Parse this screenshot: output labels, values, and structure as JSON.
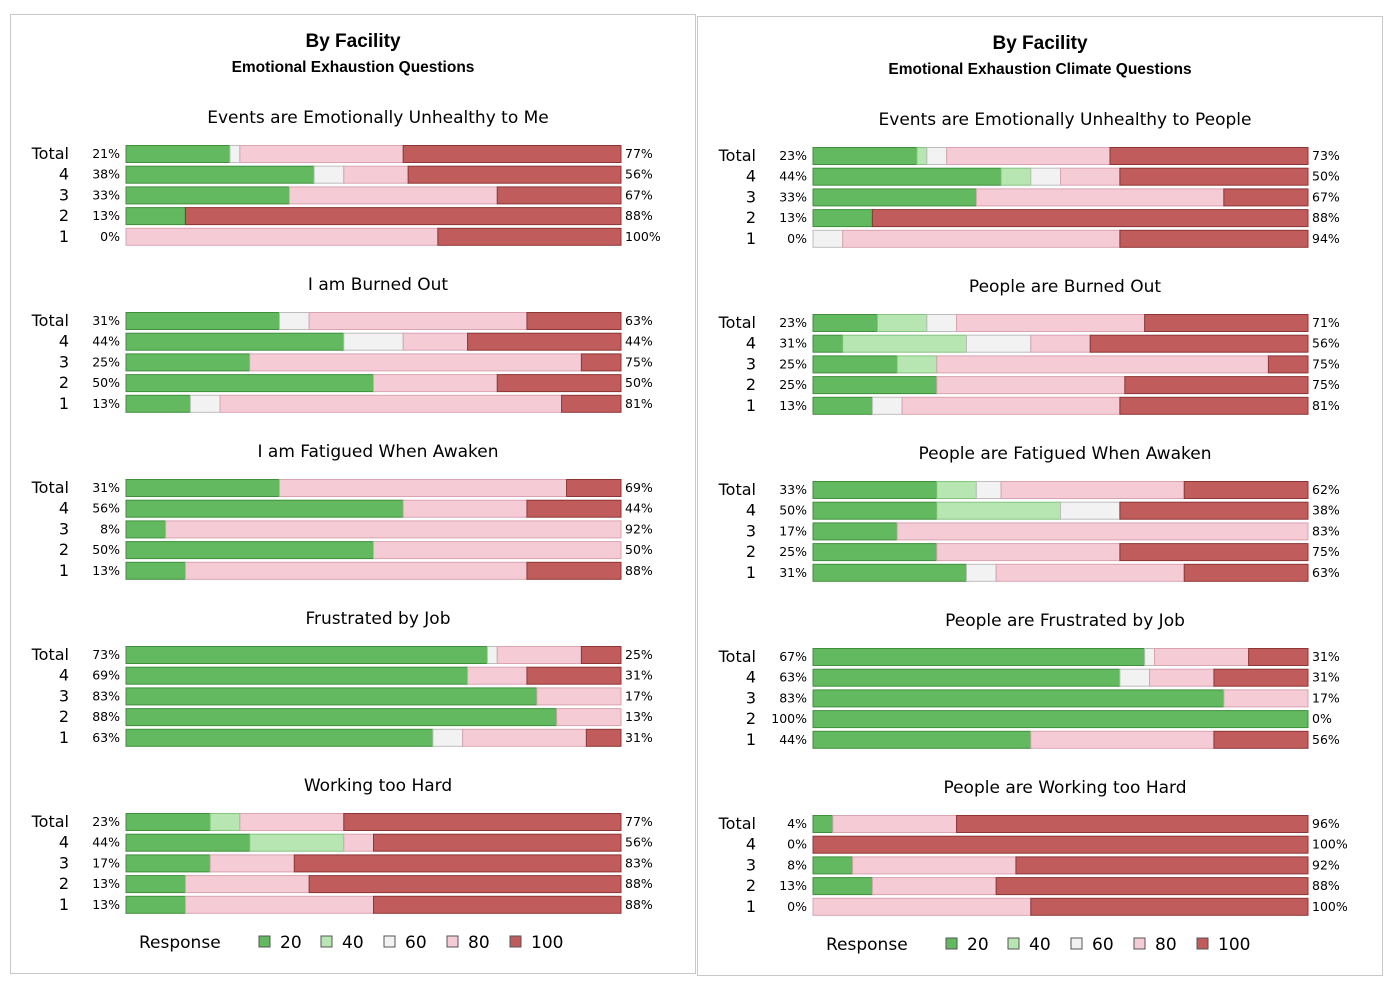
{
  "response_label": "Response",
  "legend_items": [
    "20",
    "40",
    "60",
    "80",
    "100"
  ],
  "colors": {
    "20": "#63b95f",
    "40": "#b8e6b3",
    "60": "#f2f2f2",
    "80": "#f5cbd6",
    "100": "#c15c5c"
  },
  "row_labels": [
    "Total",
    "4",
    "3",
    "2",
    "1"
  ],
  "chart_data": [
    {
      "type": "bar",
      "title": "By Facility",
      "subtitle": "Emotional Exhaustion Questions",
      "legend_title": "Response",
      "legend": [
        "20",
        "40",
        "60",
        "80",
        "100"
      ],
      "legend_placement": "bottom",
      "groups": [
        {
          "question": "Events are Emotionally Unhealthy to Me",
          "rows": [
            {
              "label": "Total",
              "left": "21%",
              "right": "77%",
              "segments": [
                21,
                0,
                2,
                33,
                44
              ]
            },
            {
              "label": "4",
              "left": "38%",
              "right": "56%",
              "segments": [
                38,
                0,
                6,
                13,
                43
              ]
            },
            {
              "label": "3",
              "left": "33%",
              "right": "67%",
              "segments": [
                33,
                0,
                0,
                42,
                25
              ]
            },
            {
              "label": "2",
              "left": "13%",
              "right": "88%",
              "segments": [
                12,
                0,
                0,
                0,
                88
              ]
            },
            {
              "label": "1",
              "left": "0%",
              "right": "100%",
              "segments": [
                0,
                0,
                0,
                63,
                37
              ]
            }
          ]
        },
        {
          "question": "I am Burned Out",
          "rows": [
            {
              "label": "Total",
              "left": "31%",
              "right": "63%",
              "segments": [
                31,
                0,
                6,
                44,
                19
              ]
            },
            {
              "label": "4",
              "left": "44%",
              "right": "44%",
              "segments": [
                44,
                0,
                12,
                13,
                31
              ]
            },
            {
              "label": "3",
              "left": "25%",
              "right": "75%",
              "segments": [
                25,
                0,
                0,
                67,
                8
              ]
            },
            {
              "label": "2",
              "left": "50%",
              "right": "50%",
              "segments": [
                50,
                0,
                0,
                25,
                25
              ]
            },
            {
              "label": "1",
              "left": "13%",
              "right": "81%",
              "segments": [
                13,
                0,
                6,
                69,
                12
              ]
            }
          ]
        },
        {
          "question": "I am Fatigued When Awaken",
          "rows": [
            {
              "label": "Total",
              "left": "31%",
              "right": "69%",
              "segments": [
                31,
                0,
                0,
                58,
                11
              ]
            },
            {
              "label": "4",
              "left": "56%",
              "right": "44%",
              "segments": [
                56,
                0,
                0,
                25,
                19
              ]
            },
            {
              "label": "3",
              "left": "8%",
              "right": "92%",
              "segments": [
                8,
                0,
                0,
                92,
                0
              ]
            },
            {
              "label": "2",
              "left": "50%",
              "right": "50%",
              "segments": [
                50,
                0,
                0,
                50,
                0
              ]
            },
            {
              "label": "1",
              "left": "13%",
              "right": "88%",
              "segments": [
                12,
                0,
                0,
                69,
                19
              ]
            }
          ]
        },
        {
          "question": "Frustrated by Job",
          "rows": [
            {
              "label": "Total",
              "left": "73%",
              "right": "25%",
              "segments": [
                73,
                0,
                2,
                17,
                8
              ]
            },
            {
              "label": "4",
              "left": "69%",
              "right": "31%",
              "segments": [
                69,
                0,
                0,
                12,
                19
              ]
            },
            {
              "label": "3",
              "left": "83%",
              "right": "17%",
              "segments": [
                83,
                0,
                0,
                17,
                0
              ]
            },
            {
              "label": "2",
              "left": "88%",
              "right": "13%",
              "segments": [
                87,
                0,
                0,
                13,
                0
              ]
            },
            {
              "label": "1",
              "left": "63%",
              "right": "31%",
              "segments": [
                62,
                0,
                6,
                25,
                7
              ]
            }
          ]
        },
        {
          "question": "Working too Hard",
          "rows": [
            {
              "label": "Total",
              "left": "23%",
              "right": "77%",
              "segments": [
                17,
                6,
                0,
                21,
                56
              ]
            },
            {
              "label": "4",
              "left": "44%",
              "right": "56%",
              "segments": [
                25,
                19,
                0,
                6,
                50
              ]
            },
            {
              "label": "3",
              "left": "17%",
              "right": "83%",
              "segments": [
                17,
                0,
                0,
                17,
                66
              ]
            },
            {
              "label": "2",
              "left": "13%",
              "right": "88%",
              "segments": [
                12,
                0,
                0,
                25,
                63
              ]
            },
            {
              "label": "1",
              "left": "13%",
              "right": "88%",
              "segments": [
                12,
                0,
                0,
                38,
                50
              ]
            }
          ]
        }
      ]
    },
    {
      "type": "bar",
      "title": "By Facility",
      "subtitle": "Emotional Exhaustion Climate Questions",
      "legend_title": "Response",
      "legend": [
        "20",
        "40",
        "60",
        "80",
        "100"
      ],
      "legend_placement": "bottom",
      "groups": [
        {
          "question": "Events are Emotionally Unhealthy to People",
          "rows": [
            {
              "label": "Total",
              "left": "23%",
              "right": "73%",
              "segments": [
                21,
                2,
                4,
                33,
                40
              ]
            },
            {
              "label": "4",
              "left": "44%",
              "right": "50%",
              "segments": [
                38,
                6,
                6,
                12,
                38
              ]
            },
            {
              "label": "3",
              "left": "33%",
              "right": "67%",
              "segments": [
                33,
                0,
                0,
                50,
                17
              ]
            },
            {
              "label": "2",
              "left": "13%",
              "right": "88%",
              "segments": [
                12,
                0,
                0,
                0,
                88
              ]
            },
            {
              "label": "1",
              "left": "0%",
              "right": "94%",
              "segments": [
                0,
                0,
                6,
                56,
                38
              ]
            }
          ]
        },
        {
          "question": "People are Burned Out",
          "rows": [
            {
              "label": "Total",
              "left": "23%",
              "right": "71%",
              "segments": [
                13,
                10,
                6,
                38,
                33
              ]
            },
            {
              "label": "4",
              "left": "31%",
              "right": "56%",
              "segments": [
                6,
                25,
                13,
                12,
                44
              ]
            },
            {
              "label": "3",
              "left": "25%",
              "right": "75%",
              "segments": [
                17,
                8,
                0,
                67,
                8
              ]
            },
            {
              "label": "2",
              "left": "25%",
              "right": "75%",
              "segments": [
                25,
                0,
                0,
                38,
                37
              ]
            },
            {
              "label": "1",
              "left": "13%",
              "right": "81%",
              "segments": [
                12,
                0,
                6,
                44,
                38
              ]
            }
          ]
        },
        {
          "question": "People are Fatigued When Awaken",
          "rows": [
            {
              "label": "Total",
              "left": "33%",
              "right": "62%",
              "segments": [
                25,
                8,
                5,
                37,
                25
              ]
            },
            {
              "label": "4",
              "left": "50%",
              "right": "38%",
              "segments": [
                25,
                25,
                12,
                0,
                38
              ]
            },
            {
              "label": "3",
              "left": "17%",
              "right": "83%",
              "segments": [
                17,
                0,
                0,
                83,
                0
              ]
            },
            {
              "label": "2",
              "left": "25%",
              "right": "75%",
              "segments": [
                25,
                0,
                0,
                37,
                38
              ]
            },
            {
              "label": "1",
              "left": "31%",
              "right": "63%",
              "segments": [
                31,
                0,
                6,
                38,
                25
              ]
            }
          ]
        },
        {
          "question": "People are Frustrated by Job",
          "rows": [
            {
              "label": "Total",
              "left": "67%",
              "right": "31%",
              "segments": [
                67,
                0,
                2,
                19,
                12
              ]
            },
            {
              "label": "4",
              "left": "63%",
              "right": "31%",
              "segments": [
                62,
                0,
                6,
                13,
                19
              ]
            },
            {
              "label": "3",
              "left": "83%",
              "right": "17%",
              "segments": [
                83,
                0,
                0,
                17,
                0
              ]
            },
            {
              "label": "2",
              "left": "100%",
              "right": "0%",
              "segments": [
                100,
                0,
                0,
                0,
                0
              ]
            },
            {
              "label": "1",
              "left": "44%",
              "right": "56%",
              "segments": [
                44,
                0,
                0,
                37,
                19
              ]
            }
          ]
        },
        {
          "question": "People are Working too Hard",
          "rows": [
            {
              "label": "Total",
              "left": "4%",
              "right": "96%",
              "segments": [
                4,
                0,
                0,
                25,
                71
              ]
            },
            {
              "label": "4",
              "left": "0%",
              "right": "100%",
              "segments": [
                0,
                0,
                0,
                0,
                100
              ]
            },
            {
              "label": "3",
              "left": "8%",
              "right": "92%",
              "segments": [
                8,
                0,
                0,
                33,
                59
              ]
            },
            {
              "label": "2",
              "left": "13%",
              "right": "88%",
              "segments": [
                12,
                0,
                0,
                25,
                63
              ]
            },
            {
              "label": "1",
              "left": "0%",
              "right": "100%",
              "segments": [
                0,
                0,
                0,
                44,
                56
              ]
            }
          ]
        }
      ]
    }
  ]
}
